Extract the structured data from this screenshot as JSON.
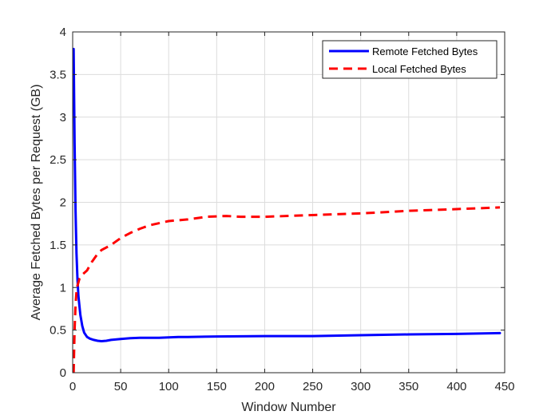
{
  "chart_data": {
    "type": "line",
    "title": "",
    "xlabel": "Window Number",
    "ylabel": "Average Fetched Bytes per Request (GB)",
    "xlim": [
      0,
      450
    ],
    "ylim": [
      0,
      4
    ],
    "xticks": [
      0,
      50,
      100,
      150,
      200,
      250,
      300,
      350,
      400,
      450
    ],
    "yticks": [
      0,
      0.5,
      1,
      1.5,
      2,
      2.5,
      3,
      3.5,
      4
    ],
    "ytick_labels": [
      "0",
      "0.5",
      "1",
      "1.5",
      "2",
      "2.5",
      "3",
      "3.5",
      "4"
    ],
    "grid": true,
    "legend_position": "top-right",
    "series": [
      {
        "name": "Remote Fetched Bytes",
        "color": "#0000ff",
        "style": "solid",
        "x": [
          1,
          2,
          3,
          4,
          5,
          6,
          8,
          10,
          12,
          15,
          18,
          22,
          26,
          30,
          35,
          40,
          50,
          60,
          70,
          80,
          90,
          100,
          110,
          120,
          150,
          200,
          250,
          300,
          350,
          400,
          445
        ],
        "y": [
          3.8,
          2.7,
          1.9,
          1.4,
          1.1,
          0.9,
          0.68,
          0.55,
          0.47,
          0.42,
          0.4,
          0.385,
          0.375,
          0.37,
          0.375,
          0.385,
          0.395,
          0.405,
          0.41,
          0.41,
          0.41,
          0.415,
          0.42,
          0.42,
          0.425,
          0.43,
          0.43,
          0.44,
          0.45,
          0.455,
          0.465
        ]
      },
      {
        "name": "Local Fetched Bytes",
        "color": "#ff0000",
        "style": "dashed",
        "x": [
          1,
          2,
          3,
          4,
          5,
          7,
          10,
          15,
          20,
          25,
          30,
          40,
          50,
          60,
          70,
          80,
          100,
          120,
          140,
          160,
          175,
          200,
          250,
          300,
          350,
          400,
          445
        ],
        "y": [
          0.0,
          0.5,
          0.8,
          0.95,
          1.02,
          1.1,
          1.15,
          1.2,
          1.3,
          1.38,
          1.44,
          1.5,
          1.58,
          1.64,
          1.69,
          1.73,
          1.78,
          1.8,
          1.83,
          1.84,
          1.83,
          1.83,
          1.85,
          1.87,
          1.9,
          1.92,
          1.94
        ]
      }
    ]
  }
}
